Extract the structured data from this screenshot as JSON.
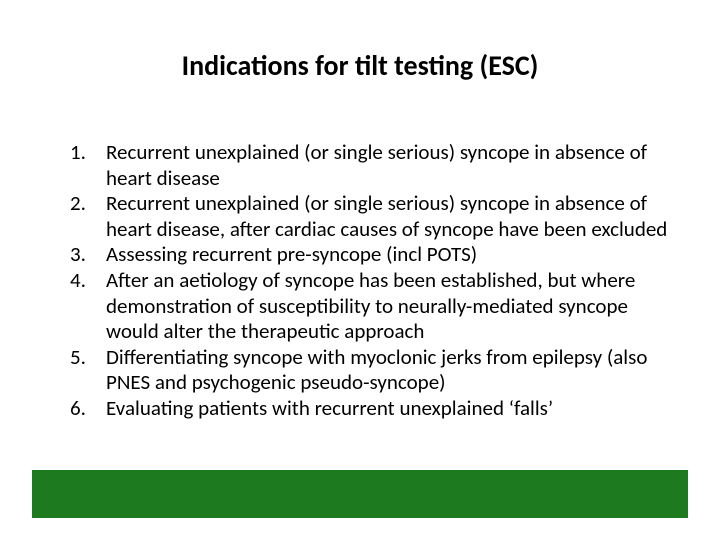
{
  "slide": {
    "title": "Indications for tilt testing (ESC)",
    "title_fontsize": 28,
    "title_color": "#000000",
    "body_fontsize": 21,
    "body_color": "#000000",
    "items": [
      "Recurrent unexplained (or single serious) syncope in absence of heart disease",
      "Recurrent unexplained (or single serious) syncope in absence of heart disease, after cardiac causes of syncope have been excluded",
      "Assessing recurrent pre-syncope (incl POTS)",
      "After an aetiology of syncope has been established, but where demonstration of susceptibility to neurally-mediated syncope would alter the therapeutic approach",
      "Differentiating syncope with myoclonic jerks from epilepsy (also PNES and psychogenic pseudo-syncope)",
      "Evaluating patients with recurrent unexplained ‘falls’"
    ],
    "footer_bar_color": "#1e7a1e",
    "background_color": "#ffffff"
  }
}
